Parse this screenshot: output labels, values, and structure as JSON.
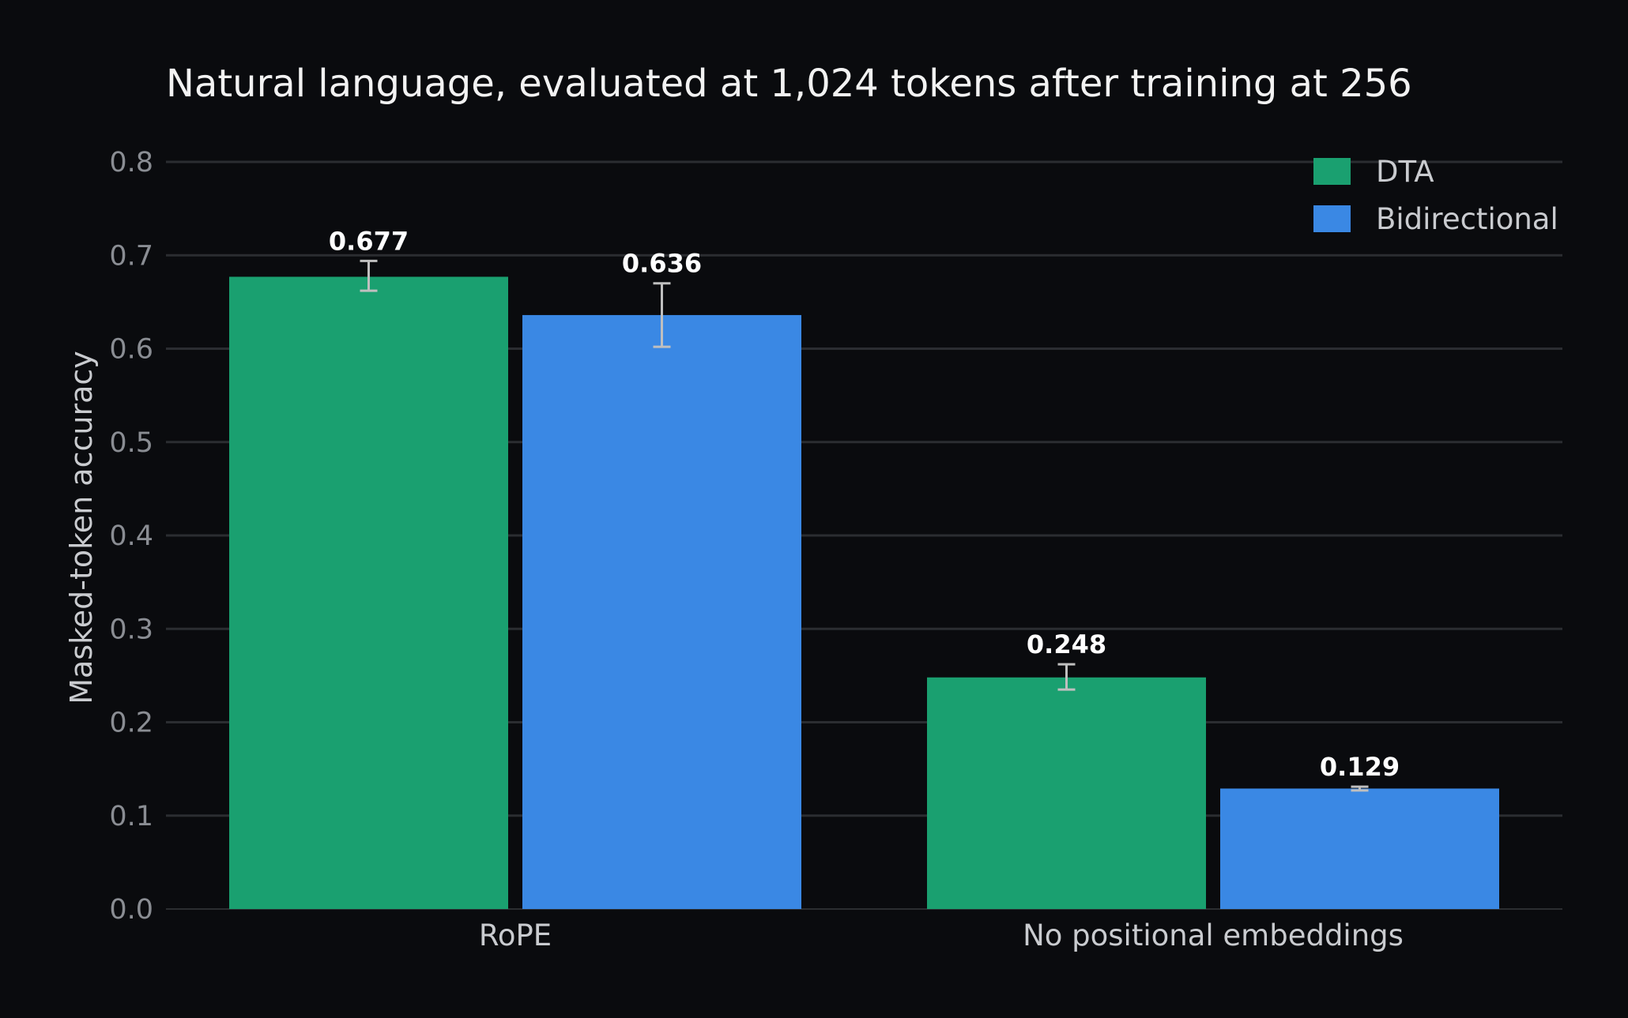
{
  "chart_data": {
    "type": "bar",
    "title": "Natural language, evaluated at 1,024 tokens after training at 256",
    "xlabel": "",
    "ylabel": "Masked-token accuracy",
    "ylim": [
      0,
      0.8
    ],
    "yticks": [
      "0.0",
      "0.1",
      "0.2",
      "0.3",
      "0.4",
      "0.5",
      "0.6",
      "0.7",
      "0.8"
    ],
    "categories": [
      "RoPE",
      "No positional embeddings"
    ],
    "series": [
      {
        "name": "DTA",
        "color": "#1aa070",
        "values": [
          0.677,
          0.248
        ],
        "labels": [
          "0.677",
          "0.248"
        ],
        "err_low": [
          0.662,
          0.235
        ],
        "err_high": [
          0.694,
          0.262
        ]
      },
      {
        "name": "Bidirectional",
        "color": "#3a88e4",
        "values": [
          0.636,
          0.129
        ],
        "labels": [
          "0.636",
          "0.129"
        ],
        "err_low": [
          0.602,
          0.127
        ],
        "err_high": [
          0.67,
          0.131
        ]
      }
    ],
    "grid": true,
    "legend": "top-right",
    "background": "#0a0b0e"
  }
}
